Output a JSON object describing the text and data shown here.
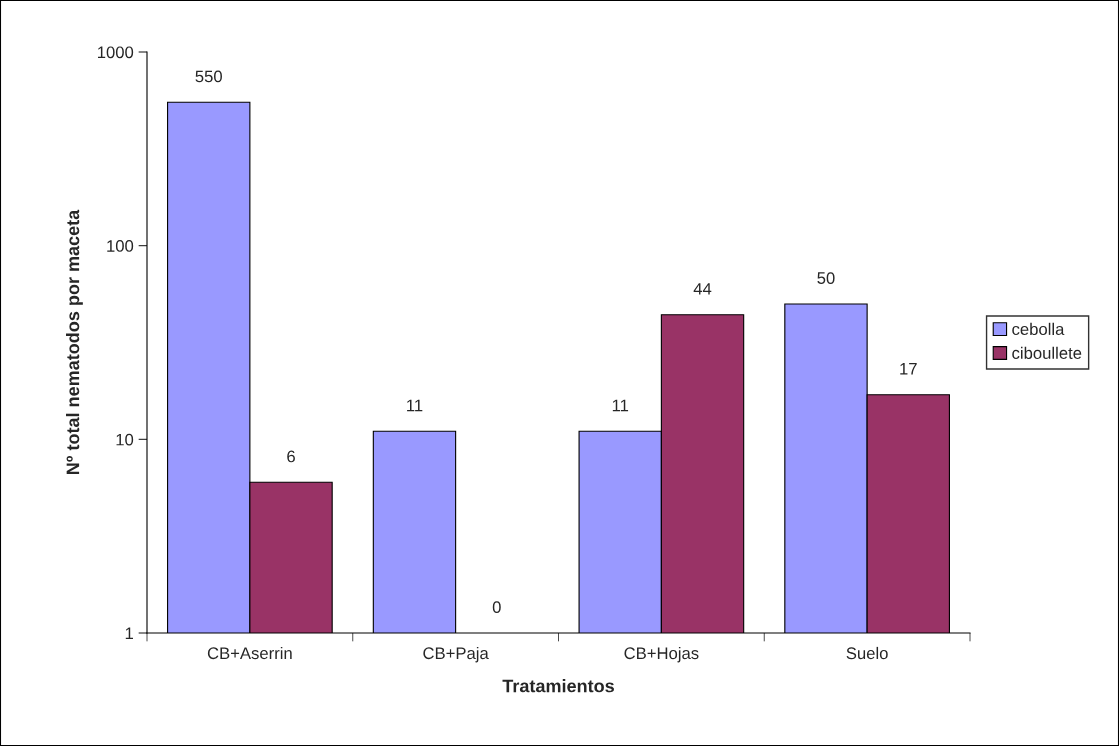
{
  "chart_data": {
    "type": "bar",
    "xlabel": "Tratamientos",
    "ylabel": "Nº total nematodos por maceta",
    "categories": [
      "CB+Aserrin",
      "CB+Paja",
      "CB+Hojas",
      "Suelo"
    ],
    "series": [
      {
        "name": "cebolla",
        "color": "#9999ff",
        "values": [
          550,
          11,
          11,
          50
        ],
        "value_labels": [
          "550",
          "11",
          "11",
          "50"
        ]
      },
      {
        "name": "ciboullete",
        "color": "#993366",
        "values": [
          6,
          null,
          44,
          17
        ],
        "value_labels": [
          "6",
          "0",
          "44",
          "17"
        ]
      }
    ],
    "log": true,
    "ylim": [
      1,
      1000
    ],
    "yticks": [
      1,
      10,
      100,
      1000
    ],
    "grid": false,
    "legend": "right"
  }
}
